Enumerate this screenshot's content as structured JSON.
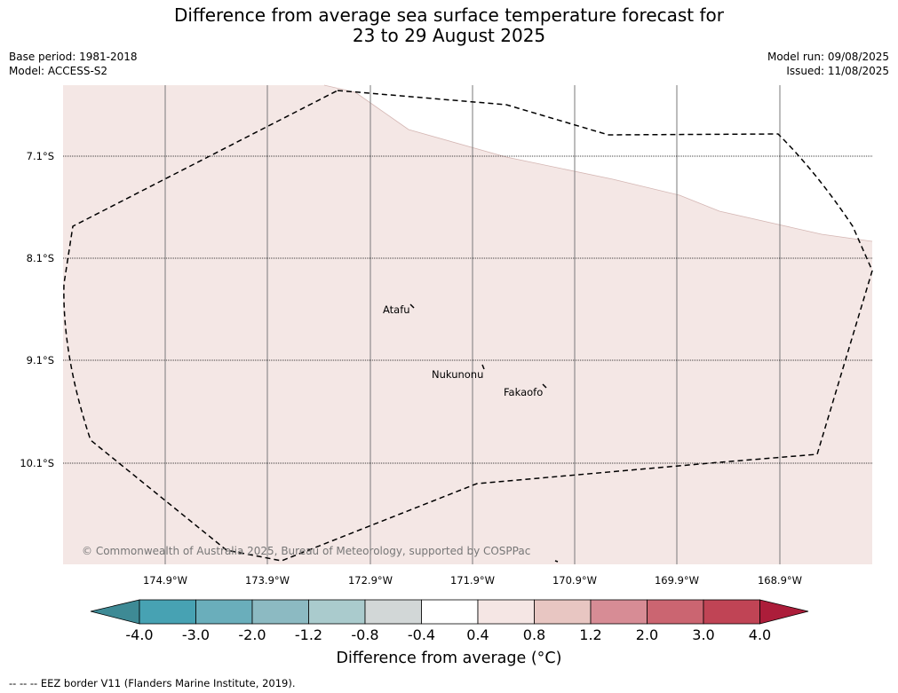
{
  "title_line1": "Difference from average sea surface temperature forecast for",
  "title_line2": "23 to 29 August 2025",
  "meta": {
    "base_period": "Base period: 1981-2018",
    "model": "Model: ACCESS-S2",
    "model_run": "Model run: 09/08/2025",
    "issued": "Issued: 11/08/2025"
  },
  "latitudes": [
    "7.1°S",
    "8.1°S",
    "9.1°S",
    "10.1°S"
  ],
  "longitudes": [
    "174.9°W",
    "173.9°W",
    "172.9°W",
    "171.9°W",
    "170.9°W",
    "169.9°W",
    "168.9°W"
  ],
  "places": {
    "atafu": "Atafu",
    "nukunonu": "Nukunonu",
    "fakaofo": "Fakaofo"
  },
  "copyright": "© Commonwealth of Australia 2025, Bureau of Meteorology, supported by COSPPac",
  "colorbar": {
    "title": "Difference from average (°C)",
    "labels": [
      "-4.0",
      "-3.0",
      "-2.0",
      "-1.2",
      "-0.8",
      "-0.4",
      "0.4",
      "0.8",
      "1.2",
      "2.0",
      "3.0",
      "4.0"
    ],
    "colors": [
      "#3e8a95",
      "#47a2b3",
      "#6aaebb",
      "#8cbac2",
      "#aacbcd",
      "#d2d7d7",
      "#ffffff",
      "#f5e6e4",
      "#e8c6c2",
      "#d78c95",
      "#cb6571",
      "#c04455",
      "#ac1d3a"
    ]
  },
  "map_colors": {
    "anomaly_fill": "#f4e7e5",
    "no_data": "#ffffff"
  },
  "footnote": "--  --  -- EEZ border V11 (Flanders Marine Institute, 2019)."
}
